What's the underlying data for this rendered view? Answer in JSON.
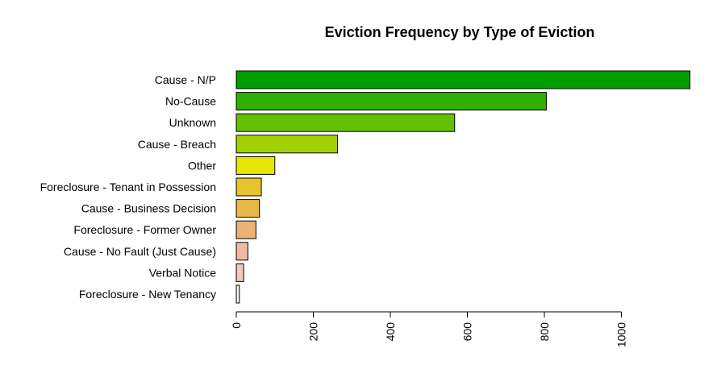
{
  "chart_data": {
    "type": "bar",
    "orientation": "horizontal",
    "title": "Eviction Frequency by Type of Eviction",
    "xlabel": "",
    "ylabel": "",
    "categories": [
      "Cause - N/P",
      "No-Cause",
      "Unknown",
      "Cause - Breach",
      "Other",
      "Foreclosure - Tenant in Possession",
      "Cause - Business Decision",
      "Foreclosure - Former Owner",
      "Cause - No Fault (Just Cause)",
      "Verbal Notice",
      "Foreclosure - New Tenancy"
    ],
    "values": [
      1178,
      805,
      567,
      263,
      100,
      65,
      60,
      51,
      30,
      19,
      8
    ],
    "colors": [
      "#009E00",
      "#30AF00",
      "#62C100",
      "#A1D100",
      "#E6E600",
      "#E8C32E",
      "#EAB849",
      "#ECB176",
      "#EDBBA2",
      "#F0C9C0",
      "#F2F2F2"
    ],
    "xlim": [
      0,
      1180
    ],
    "xticks": [
      0,
      200,
      400,
      600,
      800,
      1000
    ],
    "grid": false
  }
}
